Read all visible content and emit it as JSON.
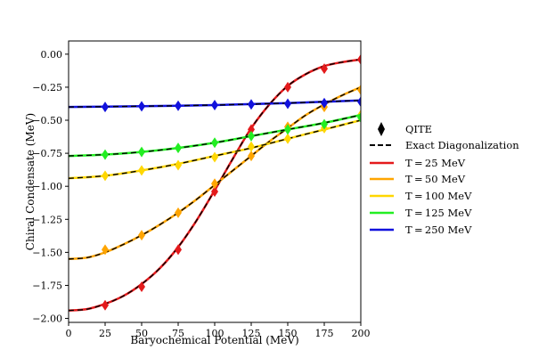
{
  "chart_data": {
    "type": "line",
    "title": "",
    "xlabel": "Baryochemical Potential (MeV)",
    "ylabel": "Chiral Condensate (MeV)",
    "xlim": [
      0,
      200
    ],
    "ylim": [
      -2.03,
      0.1
    ],
    "x_ticks": [
      0,
      25,
      50,
      75,
      100,
      125,
      150,
      175,
      200
    ],
    "y_ticks": [
      0.0,
      -0.25,
      -0.5,
      -0.75,
      -1.0,
      -1.25,
      -1.5,
      -1.75,
      -2.0
    ],
    "y_tick_labels": [
      "0.00",
      "−0.25",
      "−0.50",
      "−0.75",
      "−1.00",
      "−1.25",
      "−1.50",
      "−1.75",
      "−2.00"
    ],
    "marker_x": [
      25,
      50,
      75,
      100,
      125,
      150,
      175,
      200
    ],
    "series": [
      {
        "name": "T = 25 MeV",
        "color": "#e41a1c",
        "curve_x": [
          0,
          12.5,
          25,
          37.5,
          50,
          62.5,
          75,
          87.5,
          100,
          112.5,
          125,
          137.5,
          150,
          162.5,
          175,
          187.5,
          200
        ],
        "curve_y": [
          -1.94,
          -1.93,
          -1.89,
          -1.83,
          -1.74,
          -1.62,
          -1.46,
          -1.26,
          -1.03,
          -0.79,
          -0.56,
          -0.38,
          -0.24,
          -0.15,
          -0.09,
          -0.06,
          -0.04
        ],
        "qite_y": [
          -1.9,
          -1.76,
          -1.48,
          -1.04,
          -0.57,
          -0.25,
          -0.11,
          -0.04
        ]
      },
      {
        "name": "T = 50 MeV",
        "color": "#ffa500",
        "curve_x": [
          0,
          12.5,
          25,
          37.5,
          50,
          62.5,
          75,
          87.5,
          100,
          112.5,
          125,
          137.5,
          150,
          162.5,
          175,
          187.5,
          200
        ],
        "curve_y": [
          -1.55,
          -1.54,
          -1.5,
          -1.44,
          -1.37,
          -1.29,
          -1.2,
          -1.1,
          -0.99,
          -0.88,
          -0.77,
          -0.66,
          -0.56,
          -0.46,
          -0.38,
          -0.31,
          -0.25
        ],
        "qite_y": [
          -1.48,
          -1.37,
          -1.2,
          -0.98,
          -0.77,
          -0.55,
          -0.4,
          -0.27
        ]
      },
      {
        "name": "T = 100 MeV",
        "color": "#ffd700",
        "curve_x": [
          0,
          25,
          50,
          75,
          100,
          125,
          150,
          175,
          200
        ],
        "curve_y": [
          -0.94,
          -0.92,
          -0.88,
          -0.83,
          -0.77,
          -0.71,
          -0.64,
          -0.57,
          -0.5
        ],
        "qite_y": [
          -0.92,
          -0.88,
          -0.84,
          -0.78,
          -0.7,
          -0.64,
          -0.56,
          -0.46
        ]
      },
      {
        "name": "T = 125 MeV",
        "color": "#22ee22",
        "curve_x": [
          0,
          25,
          50,
          75,
          100,
          125,
          150,
          175,
          200
        ],
        "curve_y": [
          -0.77,
          -0.76,
          -0.74,
          -0.71,
          -0.67,
          -0.62,
          -0.57,
          -0.52,
          -0.46
        ],
        "qite_y": [
          -0.76,
          -0.74,
          -0.71,
          -0.67,
          -0.62,
          -0.57,
          -0.53,
          -0.48
        ]
      },
      {
        "name": "T = 250 MeV",
        "color": "#1111dd",
        "curve_x": [
          0,
          25,
          50,
          75,
          100,
          125,
          150,
          175,
          200
        ],
        "curve_y": [
          -0.4,
          -0.397,
          -0.394,
          -0.39,
          -0.385,
          -0.378,
          -0.37,
          -0.36,
          -0.35
        ],
        "qite_y": [
          -0.4,
          -0.395,
          -0.39,
          -0.385,
          -0.38,
          -0.375,
          -0.37,
          -0.36
        ]
      }
    ],
    "legend": {
      "position": "right",
      "qite_label": "QITE",
      "exact_label": "Exact Diagonalization",
      "series_labels": [
        "T = 25 MeV",
        "T = 50 MeV",
        "T = 100 MeV",
        "T = 125 MeV",
        "T = 250 MeV"
      ]
    }
  }
}
